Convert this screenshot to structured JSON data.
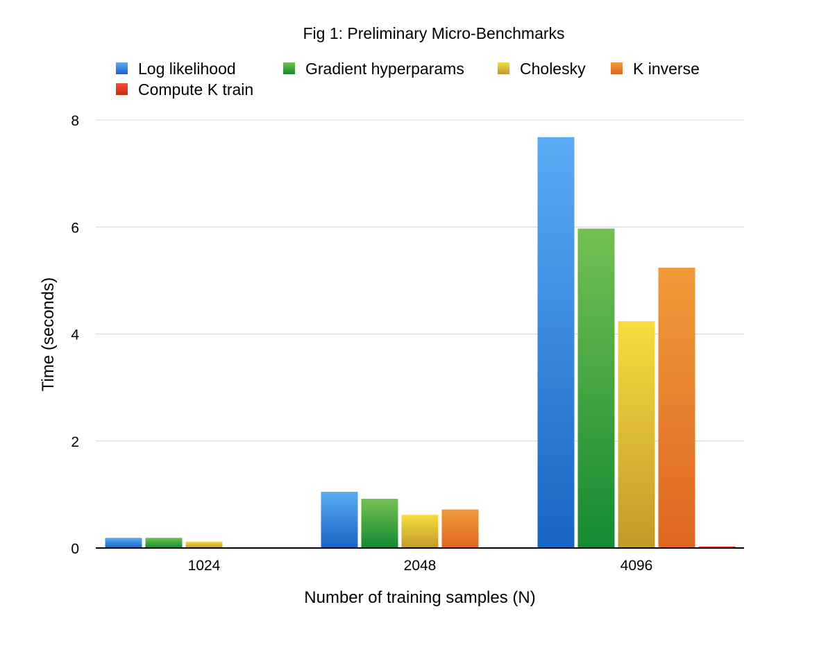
{
  "chart_data": {
    "type": "bar",
    "title": "Fig 1: Preliminary Micro-Benchmarks",
    "xlabel": "Number of training samples (N)",
    "ylabel": "Time (seconds)",
    "categories": [
      "1024",
      "2048",
      "4096"
    ],
    "ylim": [
      0,
      8
    ],
    "yticks": [
      0,
      2,
      4,
      6,
      8
    ],
    "grid": true,
    "legend_position": "top",
    "series": [
      {
        "name": "Log likelihood",
        "values": [
          0.19,
          1.05,
          7.68
        ],
        "color_light": "#5aabf5",
        "color_dark": "#1a64c4"
      },
      {
        "name": "Gradient hyperparams",
        "values": [
          0.19,
          0.92,
          5.97
        ],
        "color_light": "#74c052",
        "color_dark": "#148a33"
      },
      {
        "name": "Cholesky",
        "values": [
          0.12,
          0.62,
          4.24
        ],
        "color_light": "#f8dc3e",
        "color_dark": "#c09a2a"
      },
      {
        "name": "K inverse",
        "values": [
          0.0,
          0.72,
          5.24
        ],
        "color_light": "#f09a3a",
        "color_dark": "#de6620"
      },
      {
        "name": "Compute K train",
        "values": [
          0.0,
          0.0,
          0.03
        ],
        "color_light": "#f0502e",
        "color_dark": "#cc2a12"
      }
    ]
  }
}
